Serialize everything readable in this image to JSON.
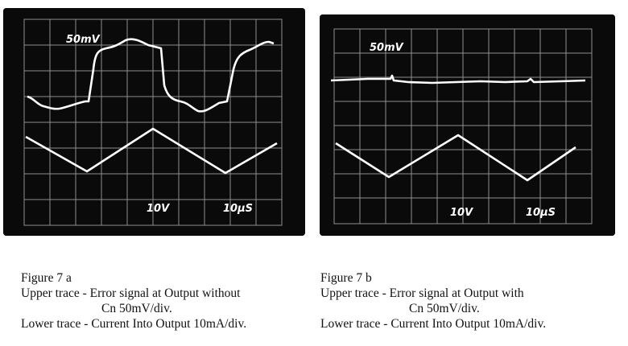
{
  "figure_a": {
    "screen_labels": {
      "volts_div": "50mV",
      "ch2_volts": "10V",
      "time_div": "10µS"
    },
    "caption": {
      "title": "Figure 7 a",
      "upper_line1": "Upper trace - Error signal at Output without",
      "upper_line2": "Cn 50mV/div.",
      "lower": "Lower trace - Current Into Output 10mA/div."
    }
  },
  "figure_b": {
    "screen_labels": {
      "volts_div": "50mV",
      "ch2_volts": "10V",
      "time_div": "10µS"
    },
    "caption": {
      "title": "Figure 7 b",
      "upper_line1": "Upper trace - Error signal at Output with",
      "upper_line2": "Cn 50mV/div.",
      "lower": "Lower trace - Current Into Output 10mA/div."
    }
  },
  "colors": {
    "screen": "#0a0a0a",
    "grid": "#9a9a9a",
    "trace": "#ffffff",
    "text": "#111111"
  }
}
